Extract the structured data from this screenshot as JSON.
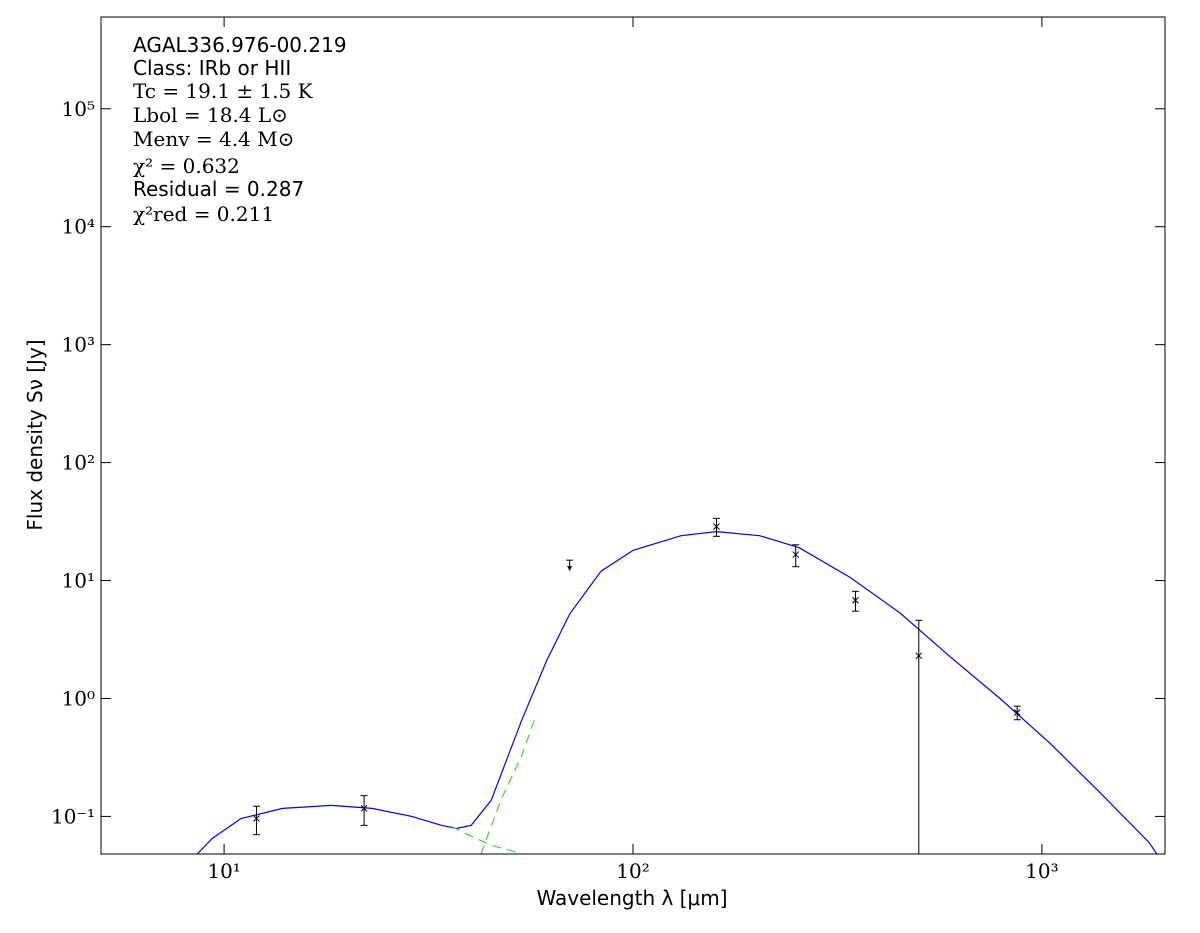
{
  "chart_data": {
    "type": "sed",
    "annotations": [
      "AGAL336.976-00.219",
      "Class: IRb or HII",
      "Tc = 19.1 ± 1.5 K",
      "Lbol = 18.4 L⊙",
      "Menv = 4.4 M⊙",
      "χ² = 0.632",
      "Residual = 0.287",
      "χ²red = 0.211"
    ],
    "x_label": "Wavelength λ [μm]",
    "y_label": "Flux density Sν [Jy]",
    "log_x": true,
    "log_y": true,
    "xlim": [
      5,
      2000
    ],
    "ylim": [
      0.048,
      600000
    ],
    "xticks": [
      {
        "value": 10,
        "label": "10¹"
      },
      {
        "value": 100,
        "label": "10²"
      },
      {
        "value": 1000,
        "label": "10³"
      }
    ],
    "yticks": [
      {
        "value": 0.1,
        "label": "10⁻¹"
      },
      {
        "value": 1,
        "label": "10⁰"
      },
      {
        "value": 10,
        "label": "10¹"
      },
      {
        "value": 100,
        "label": "10²"
      },
      {
        "value": 1000,
        "label": "10³"
      },
      {
        "value": 10000,
        "label": "10⁴"
      },
      {
        "value": 100000,
        "label": "10⁵"
      }
    ],
    "series": [
      {
        "style": "line",
        "color": "#0000ff",
        "x": [
          8.6,
          9.35,
          11,
          13.9,
          18.3,
          23,
          28.8,
          34,
          37,
          40.2,
          45,
          53.5,
          61.5,
          70,
          83.5,
          100,
          131,
          160,
          204,
          255,
          340,
          450,
          593,
          790,
          1045,
          1385,
          1830,
          1910
        ],
        "values": [
          0.048,
          0.065,
          0.096,
          0.117,
          0.124,
          0.117,
          0.1,
          0.084,
          0.079,
          0.084,
          0.137,
          0.66,
          2.1,
          5.2,
          12,
          18,
          24,
          26,
          24,
          19,
          10.6,
          5.3,
          2.3,
          1.0,
          0.42,
          0.16,
          0.06,
          0.048
        ]
      },
      {
        "style": "dashed",
        "color": "#33dd33",
        "x": [
          42.5,
          47.5,
          53.5,
          58
        ],
        "values": [
          0.048,
          0.137,
          0.33,
          0.73
        ]
      },
      {
        "style": "dashed",
        "color": "#33dd33",
        "x": [
          36,
          40.2,
          45,
          51.5
        ],
        "values": [
          0.082,
          0.068,
          0.057,
          0.05
        ]
      },
      {
        "style": "errorbar",
        "color": "#000000",
        "x": [
          12,
          22,
          160,
          250,
          350,
          500,
          870
        ],
        "values": [
          0.096,
          0.117,
          28.7,
          16.6,
          6.8,
          2.3,
          0.76
        ],
        "errors": [
          0.026,
          0.033,
          5,
          3.5,
          1.3,
          2.3,
          0.1
        ]
      },
      {
        "style": "upper_limit",
        "color": "#000000",
        "x": [
          70
        ],
        "values": [
          13.5
        ]
      }
    ]
  }
}
